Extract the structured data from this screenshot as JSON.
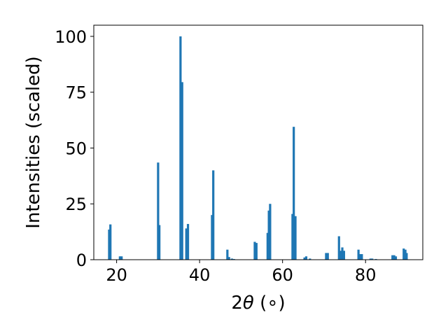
{
  "chart_data": {
    "type": "bar",
    "title": "",
    "xlabel_prefix": "2",
    "xlabel_theta": "θ",
    "xlabel_suffix": " (∘)",
    "ylabel": "Intensities (scaled)",
    "xlim": [
      14.5,
      93.8
    ],
    "ylim": [
      0,
      105
    ],
    "xticks": [
      20,
      40,
      60,
      80
    ],
    "yticks": [
      0,
      25,
      50,
      75,
      100
    ],
    "grid": false,
    "bar_color": "#1f77b4",
    "bars": [
      {
        "x": 18.2,
        "y": 13.5
      },
      {
        "x": 18.5,
        "y": 15.8
      },
      {
        "x": 20.8,
        "y": 1.5
      },
      {
        "x": 21.2,
        "y": 1.5
      },
      {
        "x": 30.0,
        "y": 43.5
      },
      {
        "x": 30.3,
        "y": 15.5
      },
      {
        "x": 35.4,
        "y": 100.0
      },
      {
        "x": 35.8,
        "y": 79.5
      },
      {
        "x": 36.8,
        "y": 14.0
      },
      {
        "x": 37.2,
        "y": 16.0
      },
      {
        "x": 43.0,
        "y": 20.0
      },
      {
        "x": 43.3,
        "y": 40.0
      },
      {
        "x": 46.7,
        "y": 4.5
      },
      {
        "x": 47.1,
        "y": 1.2
      },
      {
        "x": 47.8,
        "y": 0.5
      },
      {
        "x": 48.3,
        "y": 0.3
      },
      {
        "x": 53.3,
        "y": 8.0
      },
      {
        "x": 53.7,
        "y": 7.5
      },
      {
        "x": 56.4,
        "y": 12.0
      },
      {
        "x": 56.7,
        "y": 22.0
      },
      {
        "x": 57.0,
        "y": 25.0
      },
      {
        "x": 62.4,
        "y": 20.5
      },
      {
        "x": 62.7,
        "y": 59.5
      },
      {
        "x": 63.1,
        "y": 19.5
      },
      {
        "x": 65.3,
        "y": 1.0
      },
      {
        "x": 65.7,
        "y": 1.5
      },
      {
        "x": 66.6,
        "y": 0.5
      },
      {
        "x": 70.5,
        "y": 3.0
      },
      {
        "x": 70.9,
        "y": 3.0
      },
      {
        "x": 73.6,
        "y": 10.5
      },
      {
        "x": 74.0,
        "y": 4.0
      },
      {
        "x": 74.4,
        "y": 5.5
      },
      {
        "x": 74.8,
        "y": 4.0
      },
      {
        "x": 78.3,
        "y": 4.5
      },
      {
        "x": 78.7,
        "y": 2.5
      },
      {
        "x": 79.1,
        "y": 2.5
      },
      {
        "x": 81.2,
        "y": 0.5
      },
      {
        "x": 81.6,
        "y": 0.5
      },
      {
        "x": 82.5,
        "y": 0.3
      },
      {
        "x": 86.5,
        "y": 2.0
      },
      {
        "x": 86.9,
        "y": 2.0
      },
      {
        "x": 87.3,
        "y": 1.5
      },
      {
        "x": 89.2,
        "y": 5.0
      },
      {
        "x": 89.6,
        "y": 4.5
      },
      {
        "x": 89.9,
        "y": 3.0
      }
    ]
  }
}
